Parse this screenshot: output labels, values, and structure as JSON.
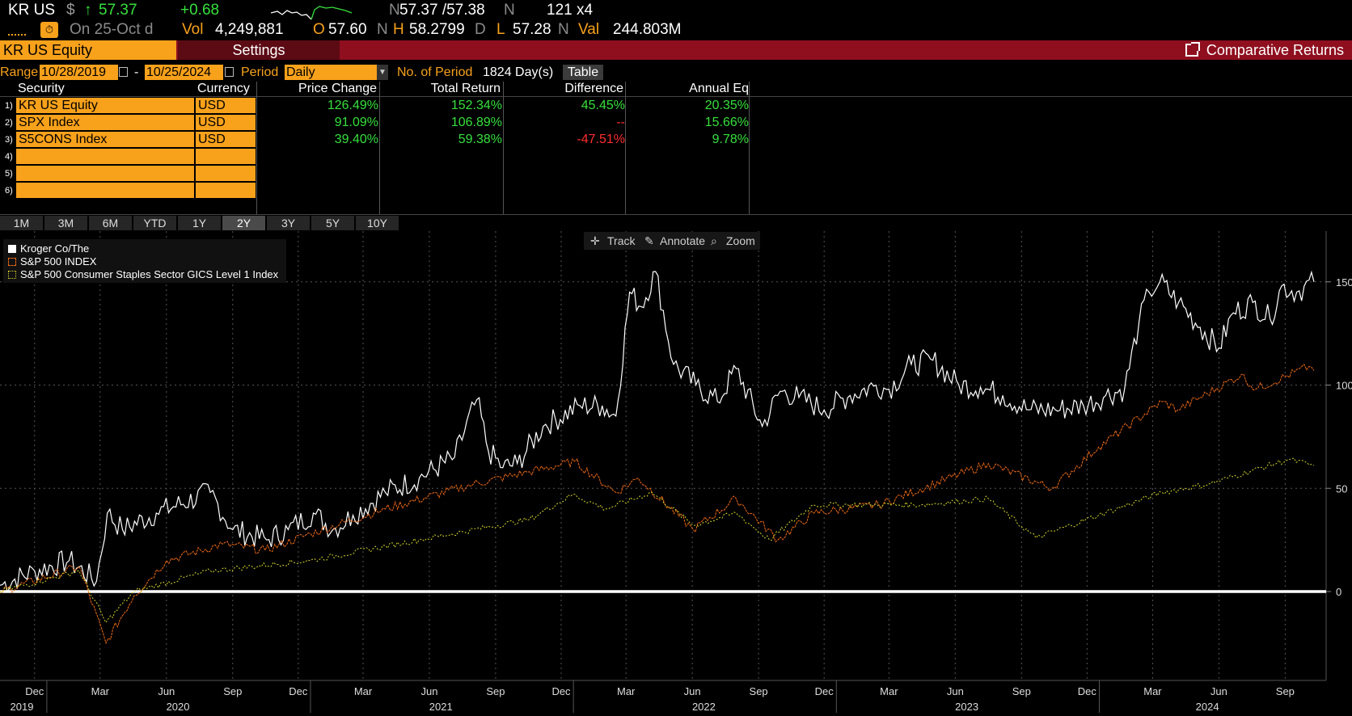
{
  "quote": {
    "ticker": "KR US",
    "currency_symbol": "$",
    "last_price": "57.37",
    "change": "+0.68",
    "bid_ask": "57.37 /57.38",
    "size": "121 x4",
    "on_label": "On 25-Oct d",
    "vol_label": "Vol",
    "vol_value": "4,249,881",
    "open_label": "O",
    "open_value": "57.60",
    "high_label": "H",
    "high_value": "58.2799",
    "low_label": "L",
    "low_value": "57.28",
    "val_label": "Val",
    "val_value": "244.803M",
    "n_flag": "N",
    "d_flag": "D"
  },
  "titlebar": {
    "security": "KR US Equity",
    "settings": "Settings",
    "function_name": "Comparative Returns"
  },
  "range": {
    "label": "Range",
    "start": "10/28/2019",
    "dash": "-",
    "end": "10/25/2024",
    "period_label": "Period",
    "period_value": "Daily",
    "num_period_label": "No. of Period",
    "num_period_value": "1824 Day(s)",
    "table_button": "Table"
  },
  "table": {
    "headers": [
      "Security",
      "Currency",
      "Price Change",
      "Total Return",
      "Difference",
      "Annual Eq"
    ],
    "rows": [
      {
        "n": "1)",
        "security": "KR US Equity",
        "currency": "USD",
        "price_change": "126.49%",
        "total_return": "152.34%",
        "difference": "45.45%",
        "annual_eq": "20.35%"
      },
      {
        "n": "2)",
        "security": "SPX Index",
        "currency": "USD",
        "price_change": "91.09%",
        "total_return": "106.89%",
        "difference": "--",
        "annual_eq": "15.66%"
      },
      {
        "n": "3)",
        "security": "S5CONS Index",
        "currency": "USD",
        "price_change": "39.40%",
        "total_return": "59.38%",
        "difference": "-47.51%",
        "annual_eq": "9.78%"
      },
      {
        "n": "4)",
        "security": "",
        "currency": "",
        "price_change": "",
        "total_return": "",
        "difference": "",
        "annual_eq": ""
      },
      {
        "n": "5)",
        "security": "",
        "currency": "",
        "price_change": "",
        "total_return": "",
        "difference": "",
        "annual_eq": ""
      },
      {
        "n": "6)",
        "security": "",
        "currency": "",
        "price_change": "",
        "total_return": "",
        "difference": "",
        "annual_eq": ""
      }
    ]
  },
  "period_buttons": [
    "1M",
    "3M",
    "6M",
    "YTD",
    "1Y",
    "2Y",
    "3Y",
    "5Y",
    "10Y"
  ],
  "active_period": "2Y",
  "tools": {
    "track": "Track",
    "annotate": "Annotate",
    "zoom": "Zoom"
  },
  "colors": {
    "amber": "#f8a11b",
    "green": "#36e03c",
    "red": "#ff2d2d",
    "title_bar": "#8f0f1f",
    "kroger": "#ffffff",
    "spx": "#f06a14",
    "staples": "#d7d72a"
  },
  "chart_data": {
    "type": "line",
    "y_ticks": [
      "150",
      "100",
      "50",
      "0"
    ],
    "ylim": [
      -45,
      165
    ],
    "x_month_labels": [
      "Dec",
      "Mar",
      "Jun",
      "Sep",
      "Dec",
      "Mar",
      "Jun",
      "Sep",
      "Dec",
      "Mar",
      "Jun",
      "Sep",
      "Dec",
      "Mar",
      "Jun",
      "Sep",
      "Dec",
      "Mar",
      "Jun",
      "Sep"
    ],
    "x_year_labels": [
      "2019",
      "2020",
      "2021",
      "2022",
      "2023",
      "2024"
    ],
    "grid": true,
    "legend_position": "top-left",
    "x_start": "2019-10-28",
    "x_end": "2024-10-25",
    "series": [
      {
        "name": "Kroger Co/The",
        "x": [
          "2019-10-28",
          "2019-12-15",
          "2020-02-01",
          "2020-03-10",
          "2020-03-25",
          "2020-04-15",
          "2020-06-01",
          "2020-08-15",
          "2020-09-15",
          "2020-11-01",
          "2020-12-01",
          "2021-01-05",
          "2021-02-01",
          "2021-03-01",
          "2021-04-15",
          "2021-06-01",
          "2021-07-20",
          "2021-08-20",
          "2021-09-05",
          "2021-09-25",
          "2021-10-15",
          "2021-11-20",
          "2022-01-10",
          "2022-02-10",
          "2022-03-01",
          "2022-03-20",
          "2022-04-05",
          "2022-04-25",
          "2022-05-20",
          "2022-06-20",
          "2022-07-20",
          "2022-08-15",
          "2022-09-20",
          "2022-10-15",
          "2022-11-10",
          "2022-12-15",
          "2023-01-20",
          "2023-02-25",
          "2023-03-15",
          "2023-04-15",
          "2023-05-15",
          "2023-06-20",
          "2023-07-20",
          "2023-08-20",
          "2023-09-25",
          "2023-11-01",
          "2023-12-10",
          "2024-01-10",
          "2024-02-05",
          "2024-02-25",
          "2024-03-10",
          "2024-03-25",
          "2024-04-20",
          "2024-05-20",
          "2024-06-15",
          "2024-07-05",
          "2024-08-01",
          "2024-08-25",
          "2024-09-10",
          "2024-10-01",
          "2024-10-25"
        ],
        "values": [
          3,
          10,
          15,
          5,
          38,
          30,
          38,
          48,
          30,
          25,
          30,
          38,
          30,
          37,
          48,
          55,
          65,
          93,
          68,
          60,
          62,
          80,
          90,
          90,
          85,
          145,
          138,
          155,
          110,
          100,
          92,
          108,
          80,
          97,
          94,
          88,
          95,
          100,
          98,
          110,
          112,
          100,
          99,
          95,
          88,
          88,
          90,
          95,
          98,
          130,
          145,
          150,
          140,
          128,
          118,
          135,
          140,
          132,
          148,
          145,
          150
        ]
      },
      {
        "name": "S&P 500 INDEX",
        "x": [
          "2019-10-28",
          "2020-02-15",
          "2020-03-23",
          "2020-05-01",
          "2020-06-15",
          "2020-09-01",
          "2020-10-30",
          "2021-01-01",
          "2021-04-15",
          "2021-08-15",
          "2021-11-01",
          "2022-01-03",
          "2022-03-01",
          "2022-04-01",
          "2022-06-16",
          "2022-08-15",
          "2022-10-12",
          "2022-12-01",
          "2023-03-01",
          "2023-07-31",
          "2023-10-27",
          "2023-12-31",
          "2024-03-28",
          "2024-04-19",
          "2024-07-16",
          "2024-08-05",
          "2024-10-18",
          "2024-10-25"
        ],
        "values": [
          0,
          12,
          -25,
          -2,
          15,
          23,
          20,
          28,
          40,
          52,
          58,
          63,
          48,
          55,
          30,
          45,
          25,
          38,
          42,
          62,
          50,
          70,
          92,
          88,
          105,
          98,
          109,
          107
        ]
      },
      {
        "name": "S&P 500 Consumer Staples Sector GICS Level 1 Index",
        "x": [
          "2019-10-28",
          "2020-02-15",
          "2020-03-23",
          "2020-05-01",
          "2020-08-15",
          "2020-12-31",
          "2021-06-01",
          "2021-11-01",
          "2021-12-31",
          "2022-02-15",
          "2022-04-20",
          "2022-06-17",
          "2022-08-15",
          "2022-09-30",
          "2022-11-30",
          "2023-04-28",
          "2023-07-31",
          "2023-10-05",
          "2023-12-31",
          "2024-03-28",
          "2024-05-31",
          "2024-09-20",
          "2024-10-25"
        ],
        "values": [
          0,
          10,
          -15,
          0,
          10,
          15,
          25,
          35,
          47,
          40,
          48,
          32,
          38,
          25,
          42,
          42,
          45,
          26,
          37,
          48,
          52,
          64,
          61
        ]
      }
    ]
  }
}
